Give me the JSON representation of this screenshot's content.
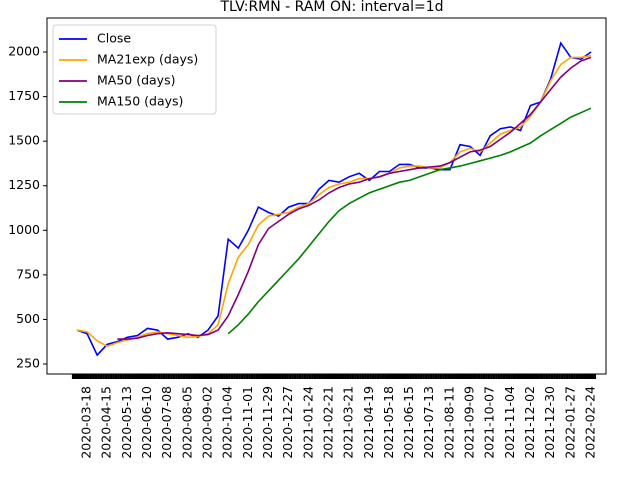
{
  "chart_data": {
    "type": "line",
    "title": "TLV:RMN - RAM ON: interval=1d",
    "categories": [
      null,
      "2020-03-18",
      null,
      "2020-04-15",
      null,
      "2020-05-13",
      null,
      "2020-06-10",
      null,
      "2020-07-08",
      null,
      "2020-08-05",
      null,
      "2020-09-02",
      null,
      "2020-10-04",
      null,
      "2020-11-01",
      null,
      "2020-11-29",
      null,
      "2020-12-27",
      null,
      "2021-01-24",
      null,
      "2021-02-21",
      null,
      "2021-03-21",
      null,
      "2021-04-19",
      null,
      "2021-05-18",
      null,
      "2021-06-15",
      null,
      "2021-07-13",
      null,
      "2021-08-11",
      null,
      "2021-09-09",
      null,
      "2021-10-07",
      null,
      "2021-11-04",
      null,
      "2021-12-02",
      null,
      "2021-12-30",
      null,
      "2022-01-27",
      null,
      "2022-02-24"
    ],
    "series": [
      {
        "name": "Close",
        "color": "#0000ff",
        "values": [
          440,
          420,
          300,
          360,
          375,
          400,
          410,
          450,
          440,
          390,
          400,
          420,
          400,
          440,
          520,
          950,
          900,
          1000,
          1130,
          1100,
          1080,
          1130,
          1150,
          1150,
          1230,
          1280,
          1270,
          1300,
          1320,
          1280,
          1330,
          1330,
          1370,
          1370,
          1350,
          1350,
          1340,
          1340,
          1480,
          1470,
          1420,
          1530,
          1570,
          1580,
          1560,
          1700,
          1720,
          1850,
          2050,
          1970,
          1960,
          2000
        ]
      },
      {
        "name": "MA21exp (days)",
        "color": "#ffa500",
        "values": [
          440,
          430,
          380,
          350,
          370,
          385,
          400,
          420,
          430,
          420,
          410,
          400,
          405,
          420,
          470,
          700,
          850,
          920,
          1030,
          1080,
          1090,
          1100,
          1130,
          1150,
          1200,
          1240,
          1260,
          1270,
          1290,
          1290,
          1300,
          1320,
          1350,
          1360,
          1360,
          1350,
          1350,
          1380,
          1440,
          1460,
          1440,
          1490,
          1540,
          1560,
          1580,
          1640,
          1720,
          1840,
          1930,
          1970,
          1970,
          1980
        ]
      },
      {
        "name": "MA50 (days)",
        "color": "#800080",
        "values": [
          null,
          null,
          null,
          null,
          390,
          390,
          395,
          410,
          420,
          425,
          420,
          415,
          410,
          415,
          440,
          520,
          640,
          770,
          920,
          1010,
          1050,
          1090,
          1120,
          1140,
          1170,
          1210,
          1240,
          1260,
          1270,
          1290,
          1300,
          1320,
          1330,
          1340,
          1350,
          1355,
          1360,
          1380,
          1410,
          1440,
          1450,
          1470,
          1510,
          1550,
          1600,
          1650,
          1720,
          1790,
          1860,
          1910,
          1950,
          1970
        ]
      },
      {
        "name": "MA150 (days)",
        "color": "#008000",
        "values": [
          null,
          null,
          null,
          null,
          null,
          null,
          null,
          null,
          null,
          null,
          null,
          null,
          null,
          null,
          null,
          420,
          470,
          530,
          600,
          660,
          720,
          780,
          840,
          910,
          980,
          1050,
          1110,
          1150,
          1180,
          1210,
          1230,
          1250,
          1270,
          1280,
          1300,
          1320,
          1340,
          1350,
          1360,
          1375,
          1390,
          1405,
          1420,
          1440,
          1465,
          1490,
          1530,
          1565,
          1600,
          1635,
          1660,
          1685
        ]
      }
    ],
    "ylim": [
      194,
      2191
    ],
    "yticks": [
      250,
      500,
      750,
      1000,
      1250,
      1500,
      1750,
      2000
    ],
    "legend": "upper left"
  }
}
